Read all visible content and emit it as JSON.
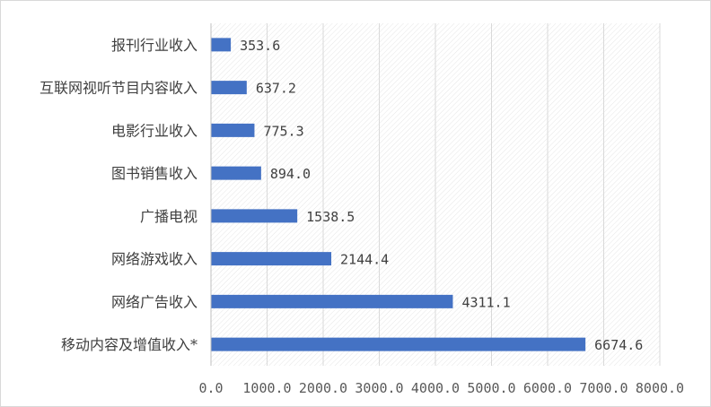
{
  "chart_data": {
    "type": "bar",
    "orientation": "horizontal",
    "categories": [
      "报刊行业收入",
      "互联网视听节目内容收入",
      "电影行业收入",
      "图书销售收入",
      "广播电视",
      "网络游戏收入",
      "网络广告收入",
      "移动内容及增值收入*"
    ],
    "values": [
      353.6,
      637.2,
      775.3,
      894.0,
      1538.5,
      2144.4,
      4311.1,
      6674.6
    ],
    "value_labels": [
      "353.6",
      "637.2",
      "775.3",
      "894.0",
      "1538.5",
      "2144.4",
      "4311.1",
      "6674.6"
    ],
    "x_ticks": [
      "0.0",
      "1000.0",
      "2000.0",
      "3000.0",
      "4000.0",
      "5000.0",
      "6000.0",
      "7000.0",
      "8000.0"
    ],
    "xlim": [
      0,
      8000
    ],
    "grid": true,
    "colors": {
      "bar": "#4472c4",
      "grid": "#d9d9d9",
      "text": "#404040"
    }
  }
}
